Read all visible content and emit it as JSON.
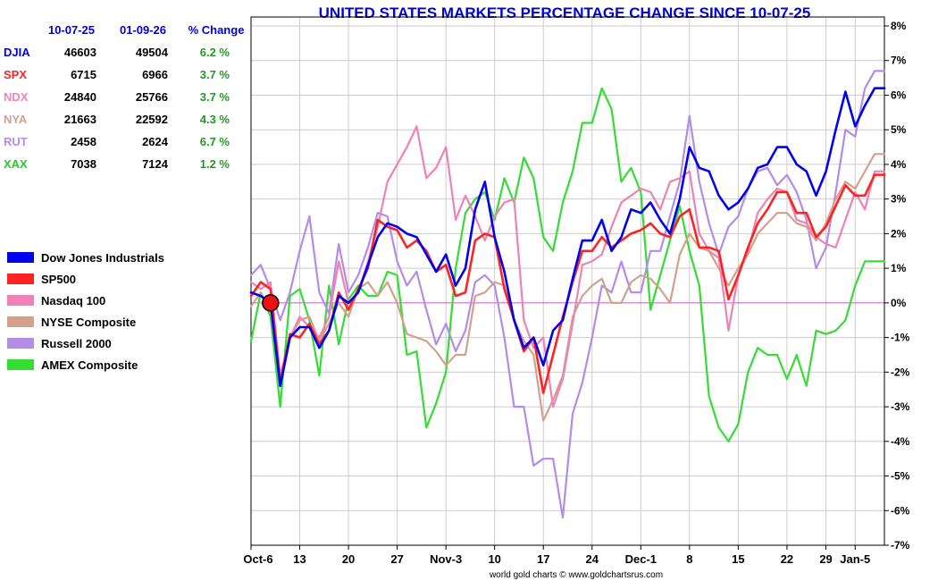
{
  "chart_data": {
    "type": "line",
    "title": "UNITED STATES MARKETS PERCENTAGE CHANGE SINCE 10-07-25",
    "footer": "world gold charts © www.goldchartsrus.com",
    "ylim": [
      -7,
      8
    ],
    "yticks": [
      8,
      7,
      6,
      5,
      4,
      3,
      2,
      1,
      0,
      -1,
      -2,
      -3,
      -4,
      -5,
      -6,
      -7
    ],
    "ytick_labels": [
      "8%",
      "7%",
      "6%",
      "5%",
      "4%",
      "3%",
      "2%",
      "1%",
      "0%",
      "-1%",
      "-2%",
      "-3%",
      "-4%",
      "-5%",
      "-6%",
      "-7%"
    ],
    "x_count": 66,
    "xticks": [
      {
        "label": "Oct-6",
        "index": 0
      },
      {
        "label": "13",
        "index": 5
      },
      {
        "label": "20",
        "index": 10
      },
      {
        "label": "27",
        "index": 15
      },
      {
        "label": "Nov-3",
        "index": 20
      },
      {
        "label": "10",
        "index": 25
      },
      {
        "label": "17",
        "index": 30
      },
      {
        "label": "24",
        "index": 35
      },
      {
        "label": "Dec-1",
        "index": 40
      },
      {
        "label": "8",
        "index": 45
      },
      {
        "label": "15",
        "index": 50
      },
      {
        "label": "22",
        "index": 55
      },
      {
        "label": "29",
        "index": 59
      },
      {
        "label": "Jan-5",
        "index": 62
      }
    ],
    "base_marker": {
      "index": 2,
      "value": 0
    },
    "table": {
      "headers": [
        "",
        "10-07-25",
        "01-09-26",
        "% Change"
      ],
      "rows": [
        {
          "symbol": "DJIA",
          "start": "46603",
          "end": "49504",
          "change": "6.2 %",
          "color": "#0000dd"
        },
        {
          "symbol": "SPX",
          "start": "6715",
          "end": "6966",
          "change": "3.7 %",
          "color": "#ff2222"
        },
        {
          "symbol": "NDX",
          "start": "24840",
          "end": "25766",
          "change": "3.7 %",
          "color": "#ee82b4"
        },
        {
          "symbol": "NYA",
          "start": "21663",
          "end": "22592",
          "change": "4.3 %",
          "color": "#d2a18c"
        },
        {
          "symbol": "RUT",
          "start": "2458",
          "end": "2624",
          "change": "6.7 %",
          "color": "#b48ce6"
        },
        {
          "symbol": "XAX",
          "start": "7038",
          "end": "7124",
          "change": "1.2 %",
          "color": "#22cc22"
        }
      ]
    },
    "series": [
      {
        "name": "Dow Jones Industrials",
        "color": "#0000ee",
        "width": 2.6,
        "values": [
          0.3,
          0.2,
          0,
          -2.4,
          -1.0,
          -0.7,
          -0.7,
          -1.3,
          -0.8,
          0.2,
          0,
          0.3,
          1.1,
          1.9,
          2.3,
          2.2,
          2.0,
          1.9,
          1.4,
          0.9,
          1.4,
          0.5,
          1.0,
          2.7,
          3.5,
          1.9,
          0.9,
          -0.5,
          -1.3,
          -1.0,
          -1.8,
          -0.8,
          -0.5,
          0.7,
          1.8,
          1.8,
          2.4,
          1.5,
          1.9,
          2.7,
          2.6,
          2.9,
          2.4,
          2.0,
          3.0,
          4.5,
          3.9,
          3.8,
          3.1,
          2.7,
          2.9,
          3.3,
          3.9,
          4.0,
          4.5,
          4.5,
          4.0,
          3.8,
          3.1,
          3.8,
          5.0,
          6.1,
          5.1,
          5.7,
          6.2,
          6.2
        ]
      },
      {
        "name": "SP500",
        "color": "#ff2222",
        "width": 2.6,
        "values": [
          0.2,
          0.6,
          0.4,
          -2.3,
          -0.9,
          -1.0,
          -0.6,
          -1.2,
          -0.8,
          0.3,
          -0.2,
          0.4,
          1.0,
          2.4,
          2.2,
          2.1,
          1.6,
          1.8,
          1.5,
          0.9,
          1.1,
          0.2,
          0.3,
          1.8,
          2.0,
          1.9,
          0.4,
          -0.5,
          -1.4,
          -1.0,
          -2.6,
          -1.5,
          -0.4,
          0.6,
          1.5,
          1.5,
          1.9,
          1.6,
          1.8,
          2.0,
          2.1,
          2.3,
          2.0,
          1.9,
          2.5,
          2.7,
          1.6,
          1.6,
          1.5,
          0.1,
          0.8,
          1.6,
          2.3,
          2.7,
          3.2,
          3.2,
          2.6,
          2.6,
          1.9,
          2.2,
          2.8,
          3.4,
          3.1,
          3.1,
          3.7,
          3.7
        ]
      },
      {
        "name": "Nasdaq 100",
        "color": "#ee82b4",
        "width": 2.2,
        "values": [
          0.6,
          0.4,
          0.6,
          -2.1,
          -1.0,
          -0.4,
          -0.7,
          -1.0,
          -0.4,
          1.2,
          0,
          0.3,
          1.2,
          2.2,
          3.5,
          4.0,
          4.5,
          5.1,
          3.6,
          3.9,
          4.5,
          2.4,
          3.1,
          2.5,
          1.8,
          2.5,
          2.9,
          3.0,
          -0.5,
          -1.3,
          -1.0,
          -3.0,
          -2.2,
          -0.6,
          1.1,
          1.2,
          1.4,
          2.2,
          2.9,
          3.1,
          3.3,
          3.2,
          2.7,
          3.5,
          3.6,
          3.8,
          2.0,
          1.5,
          1.3,
          -0.8,
          0.8,
          1.5,
          2.6,
          3.0,
          3.3,
          3.2,
          2.4,
          2.3,
          1.9,
          1.7,
          1.6,
          2.4,
          3.2,
          2.7,
          3.8,
          3.8
        ]
      },
      {
        "name": "NYSE Composite",
        "color": "#d2a18c",
        "width": 2.2,
        "values": [
          -0.1,
          0.3,
          -0.2,
          -2.3,
          -1.0,
          -0.5,
          -0.4,
          -1.1,
          -0.6,
          0,
          -0.4,
          0.4,
          0.6,
          0.2,
          0.6,
          0,
          -0.9,
          -1.0,
          -1.1,
          -1.4,
          -1.8,
          -1.5,
          -1.5,
          0.2,
          0.3,
          0.6,
          0.5,
          -0.5,
          -1.1,
          -1.5,
          -3.4,
          -2.8,
          -2.1,
          -0.4,
          0.2,
          0.5,
          0.7,
          0,
          0,
          0.6,
          0.8,
          0.7,
          0.4,
          0,
          1.4,
          2.0,
          1.6,
          1.5,
          1.0,
          0.5,
          1.0,
          1.4,
          2.0,
          2.3,
          2.6,
          2.6,
          2.3,
          2.2,
          1.8,
          2.3,
          3.0,
          3.5,
          3.3,
          3.8,
          4.3,
          4.3
        ]
      },
      {
        "name": "Russell 2000",
        "color": "#b48ce6",
        "width": 2.2,
        "values": [
          0.8,
          1.1,
          0.4,
          -0.5,
          0.3,
          1.5,
          2.5,
          0.3,
          -0.3,
          1.7,
          0.3,
          0.8,
          1.6,
          2.6,
          2.5,
          1.2,
          0.5,
          0.9,
          -0.2,
          -1.2,
          -0.6,
          -1.4,
          -0.8,
          0.6,
          0.8,
          0.5,
          -1.0,
          -3.0,
          -3.0,
          -4.7,
          -4.5,
          -4.5,
          -6.2,
          -3.2,
          -2.3,
          -1.0,
          0.5,
          0.3,
          1.2,
          0.3,
          0.3,
          1.5,
          1.5,
          2.5,
          3.5,
          5.4,
          3.5,
          2.3,
          1.4,
          2.2,
          2.5,
          3.3,
          3.8,
          3.9,
          3.4,
          3.7,
          3.2,
          2.4,
          1.0,
          1.6,
          3.2,
          5.0,
          4.8,
          6.2,
          6.7,
          6.7
        ]
      },
      {
        "name": "AMEX Composite",
        "color": "#33dd33",
        "width": 2.2,
        "values": [
          -1.1,
          0.3,
          -0.4,
          -3.0,
          0.2,
          0.4,
          -0.5,
          -2.1,
          0.5,
          -1.2,
          0.1,
          0.5,
          0.2,
          0.2,
          0.9,
          0.8,
          -1.5,
          -1.4,
          -3.6,
          -2.9,
          -2.0,
          1.0,
          2.6,
          3.0,
          3.2,
          2.4,
          3.6,
          2.9,
          4.2,
          3.6,
          1.9,
          1.5,
          2.9,
          3.8,
          5.2,
          5.2,
          6.2,
          5.6,
          3.5,
          3.9,
          3.2,
          -0.2,
          0.8,
          1.8,
          2.8,
          1.5,
          0.5,
          -2.7,
          -3.6,
          -4.0,
          -3.5,
          -2.0,
          -1.3,
          -1.5,
          -1.5,
          -2.2,
          -1.5,
          -2.4,
          -0.8,
          -0.9,
          -0.8,
          -0.5,
          0.5,
          1.2,
          1.2,
          1.2
        ]
      }
    ]
  }
}
